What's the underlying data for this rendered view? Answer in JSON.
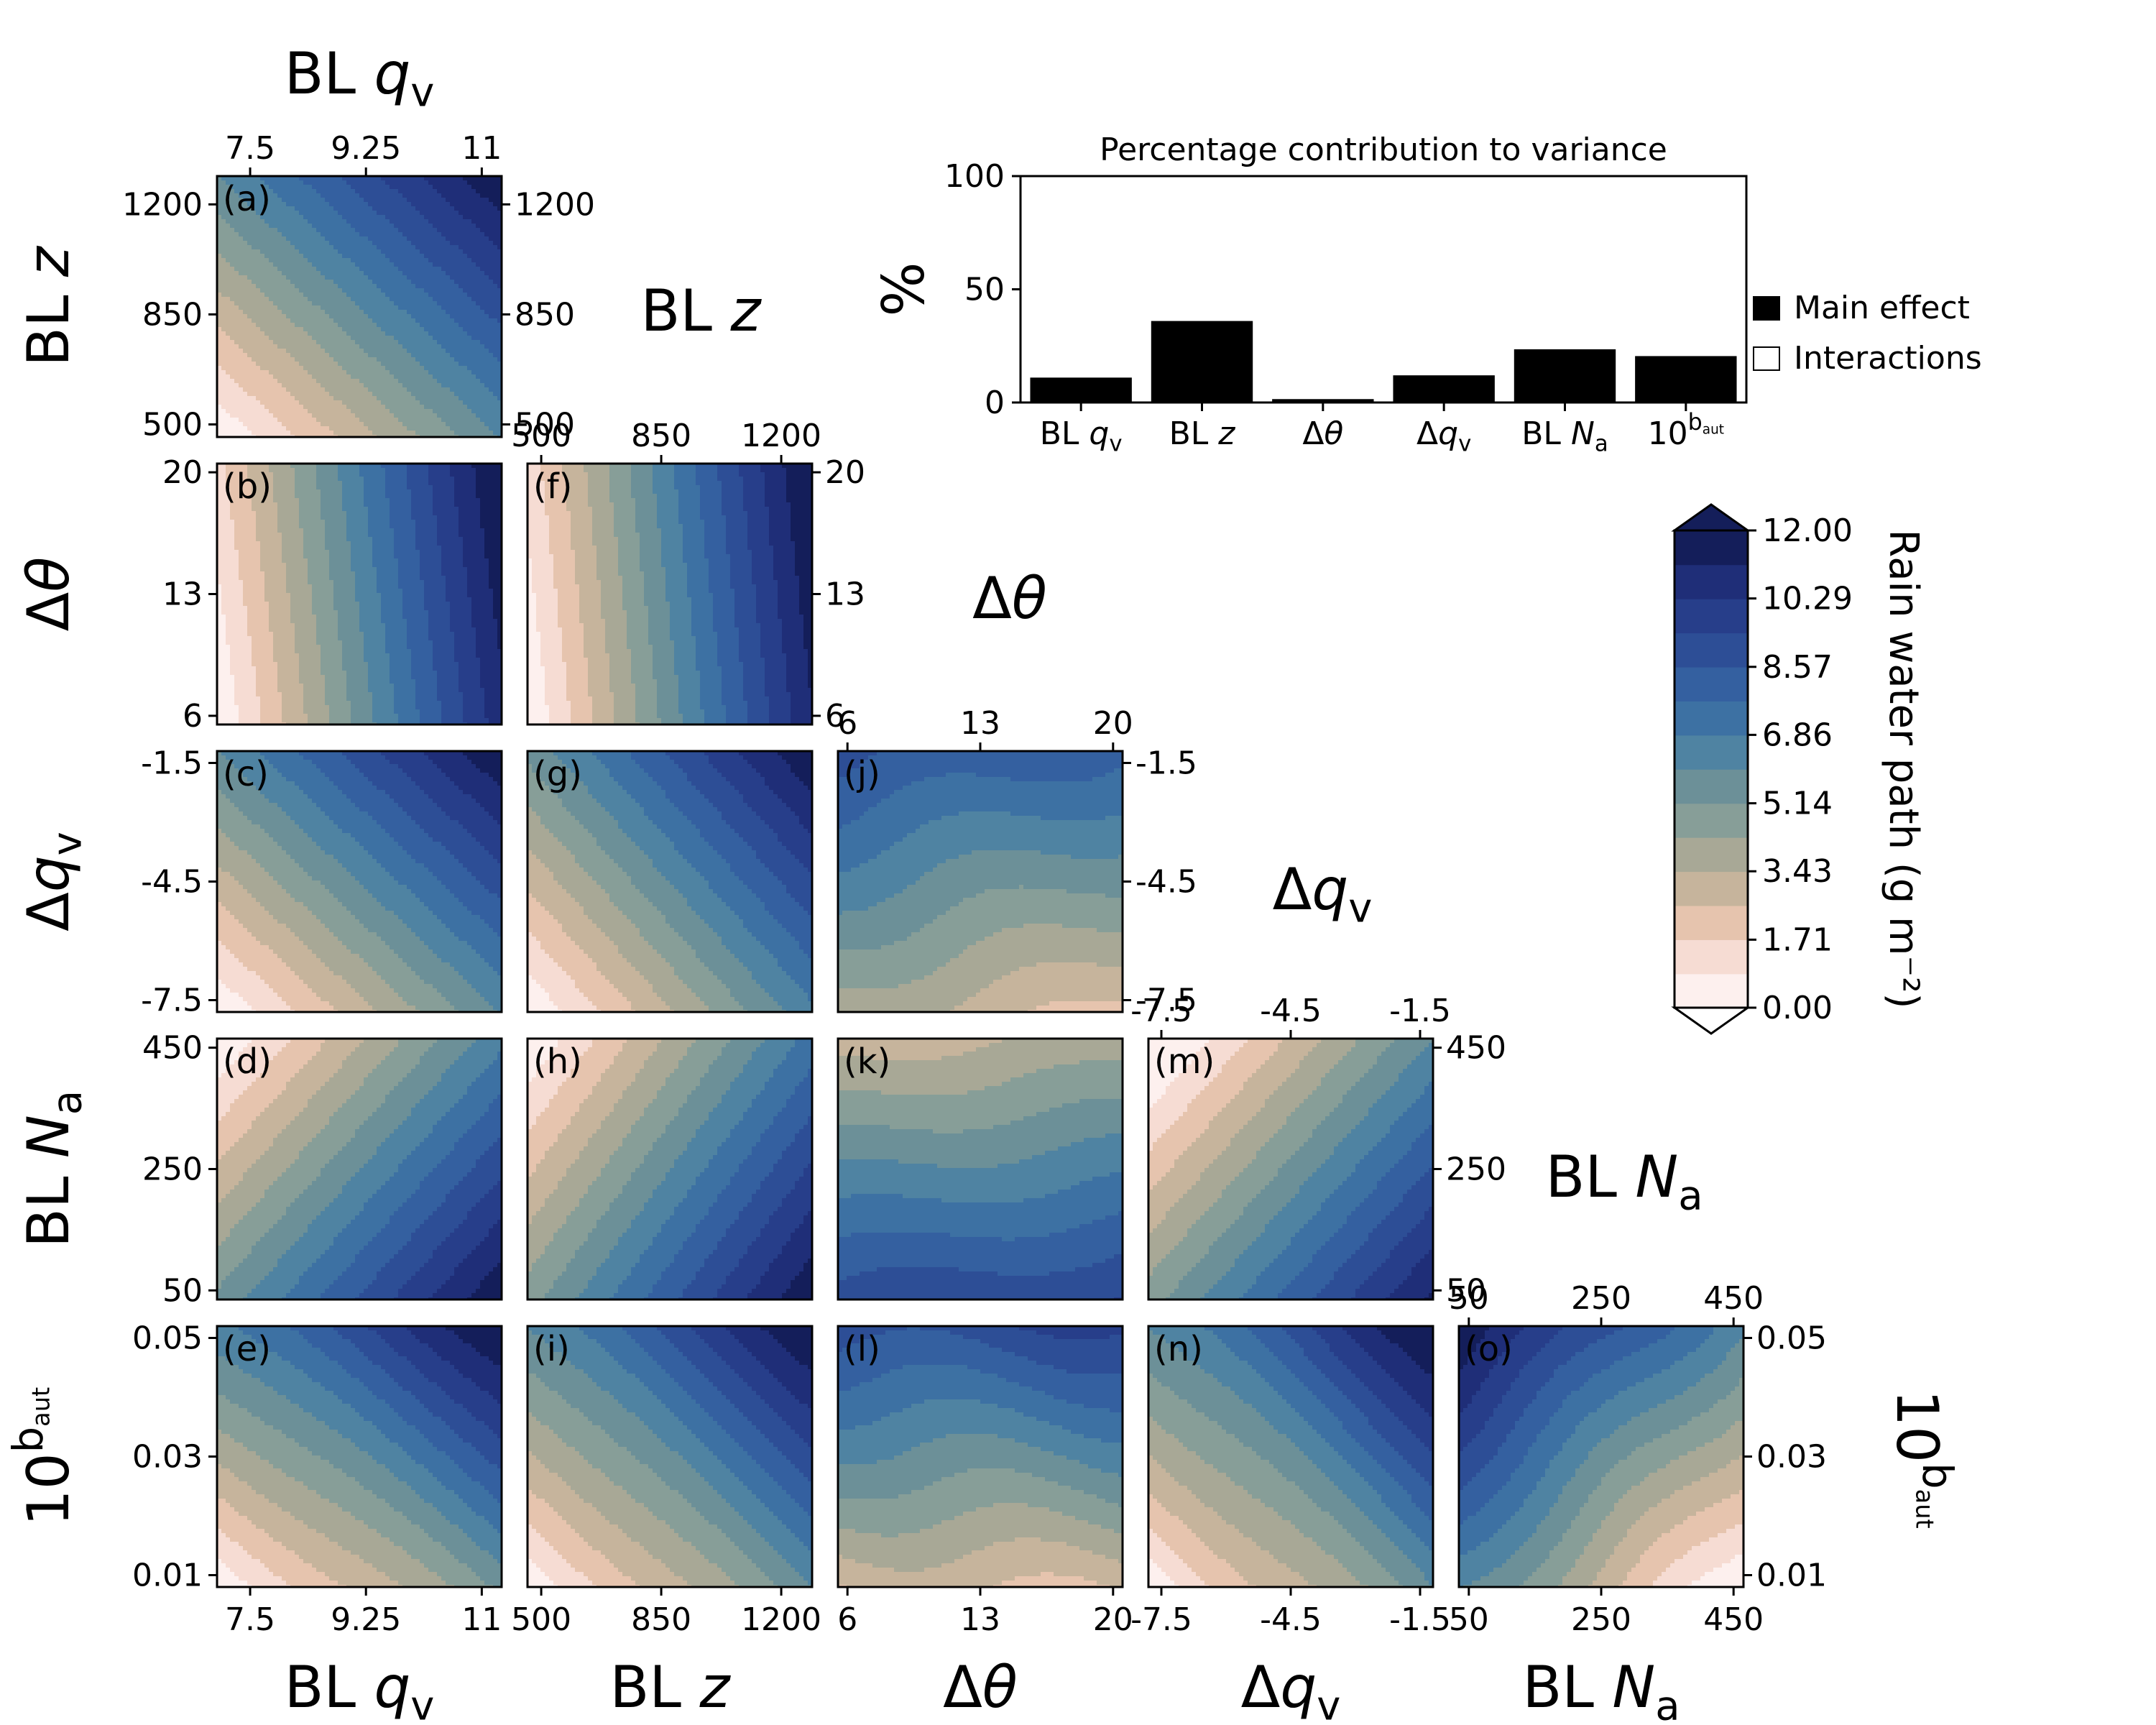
{
  "chart_data": [
    {
      "type": "heatmap",
      "description_role": "triangular matrix of 2-D contour panels (emulated rain water path)",
      "colorbar": {
        "label": "Rain water path (g m⁻²)",
        "tick_labels": [
          "0.00",
          "1.71",
          "3.43",
          "5.14",
          "6.86",
          "8.57",
          "10.29",
          "12.00"
        ],
        "range": [
          0,
          12
        ],
        "levels": 14,
        "extend": "both",
        "colors": [
          "#fdf0ee",
          "#f6dcd3",
          "#e6c4ae",
          "#c6b49c",
          "#a8a896",
          "#879e98",
          "#6c9098",
          "#4f83a2",
          "#3d71a3",
          "#3460a0",
          "#2d4e96",
          "#273e8a",
          "#1f2e78",
          "#141e5a"
        ]
      },
      "variables": [
        {
          "key": "qv",
          "label_pre": "BL ",
          "label_sym": "q",
          "label_sub": "v",
          "ticks": [
            "7.5",
            "9.25",
            "11"
          ],
          "range": [
            7.0,
            11.3
          ]
        },
        {
          "key": "z",
          "label_pre": "BL ",
          "label_sym": "z",
          "label_sub": "",
          "ticks": [
            "500",
            "850",
            "1200"
          ],
          "range": [
            460,
            1290
          ]
        },
        {
          "key": "dth",
          "label_pre": "Δ",
          "label_sym": "θ",
          "label_sub": "",
          "ticks": [
            "6",
            "13",
            "20"
          ],
          "range": [
            5.5,
            20.5
          ]
        },
        {
          "key": "dqv",
          "label_pre": "Δ",
          "label_sym": "q",
          "label_sub": "v",
          "ticks": [
            "-7.5",
            "-4.5",
            "-1.5"
          ],
          "range": [
            -7.8,
            -1.2
          ]
        },
        {
          "key": "na",
          "label_pre": "BL ",
          "label_sym": "N",
          "label_sub": "a",
          "ticks": [
            "50",
            "250",
            "450"
          ],
          "range": [
            35,
            465
          ]
        },
        {
          "key": "baut",
          "label_pre": "10",
          "label_sym": "",
          "label_sup": "b",
          "label_supsub": "aut",
          "ticks": [
            "0.01",
            "0.03",
            "0.05"
          ],
          "range": [
            0.008,
            0.052
          ]
        }
      ],
      "panels": [
        {
          "id": "(a)",
          "x": "qv",
          "y": "z",
          "a": 0.5,
          "b": 0.5,
          "c": 0.0,
          "wave": 0.0
        },
        {
          "id": "(b)",
          "x": "qv",
          "y": "dth",
          "a": 0.9,
          "b": 0.12,
          "c": 0.0,
          "wave": 0.0
        },
        {
          "id": "(c)",
          "x": "qv",
          "y": "dqv",
          "a": 0.5,
          "b": 0.5,
          "c": 0.0,
          "wave": 0.0
        },
        {
          "id": "(d)",
          "x": "qv",
          "y": "na",
          "a": 0.55,
          "b": -0.45,
          "c": 0.45,
          "wave": 0.0
        },
        {
          "id": "(e)",
          "x": "qv",
          "y": "baut",
          "a": 0.45,
          "b": 0.55,
          "c": 0.0,
          "wave": 0.02
        },
        {
          "id": "(f)",
          "x": "z",
          "y": "dth",
          "a": 0.92,
          "b": 0.1,
          "c": 0.0,
          "wave": 0.0
        },
        {
          "id": "(g)",
          "x": "z",
          "y": "dqv",
          "a": 0.55,
          "b": 0.45,
          "c": 0.0,
          "wave": 0.0
        },
        {
          "id": "(h)",
          "x": "z",
          "y": "na",
          "a": 0.6,
          "b": -0.4,
          "c": 0.4,
          "wave": 0.0
        },
        {
          "id": "(i)",
          "x": "z",
          "y": "baut",
          "a": 0.5,
          "b": 0.5,
          "c": 0.0,
          "wave": 0.02
        },
        {
          "id": "(j)",
          "x": "dth",
          "y": "dqv",
          "a": -0.1,
          "b": 0.45,
          "c": 0.3,
          "wave": 0.03
        },
        {
          "id": "(k)",
          "x": "dth",
          "y": "na",
          "a": 0.05,
          "b": -0.5,
          "c": 0.75,
          "wave": 0.02
        },
        {
          "id": "(l)",
          "x": "dth",
          "y": "baut",
          "a": 0.03,
          "b": 0.55,
          "c": 0.2,
          "wave": 0.04
        },
        {
          "id": "(m)",
          "x": "dqv",
          "y": "na",
          "a": 0.55,
          "b": -0.45,
          "c": 0.4,
          "wave": 0.0
        },
        {
          "id": "(n)",
          "x": "dqv",
          "y": "baut",
          "a": 0.5,
          "b": 0.5,
          "c": 0.0,
          "wave": 0.03
        },
        {
          "id": "(o)",
          "x": "na",
          "y": "baut",
          "a": -0.5,
          "b": 0.5,
          "c": 0.5,
          "wave": 0.03
        }
      ]
    },
    {
      "type": "bar",
      "title": "Percentage contribution to variance",
      "ylabel": "%",
      "ylim": [
        0,
        100
      ],
      "yticks": [
        "0",
        "50",
        "100"
      ],
      "categories": [
        "BL qv",
        "BL z",
        "Δθ",
        "Δqv",
        "BL Na",
        "10^baut"
      ],
      "series": [
        {
          "name": "Main effect",
          "values": [
            11,
            36,
            1.5,
            12,
            23.5,
            20.5
          ],
          "color": "#000000"
        },
        {
          "name": "Interactions",
          "values": [
            0,
            0,
            0,
            0,
            0,
            0
          ],
          "color": "#ffffff"
        }
      ],
      "legend": "right"
    }
  ]
}
